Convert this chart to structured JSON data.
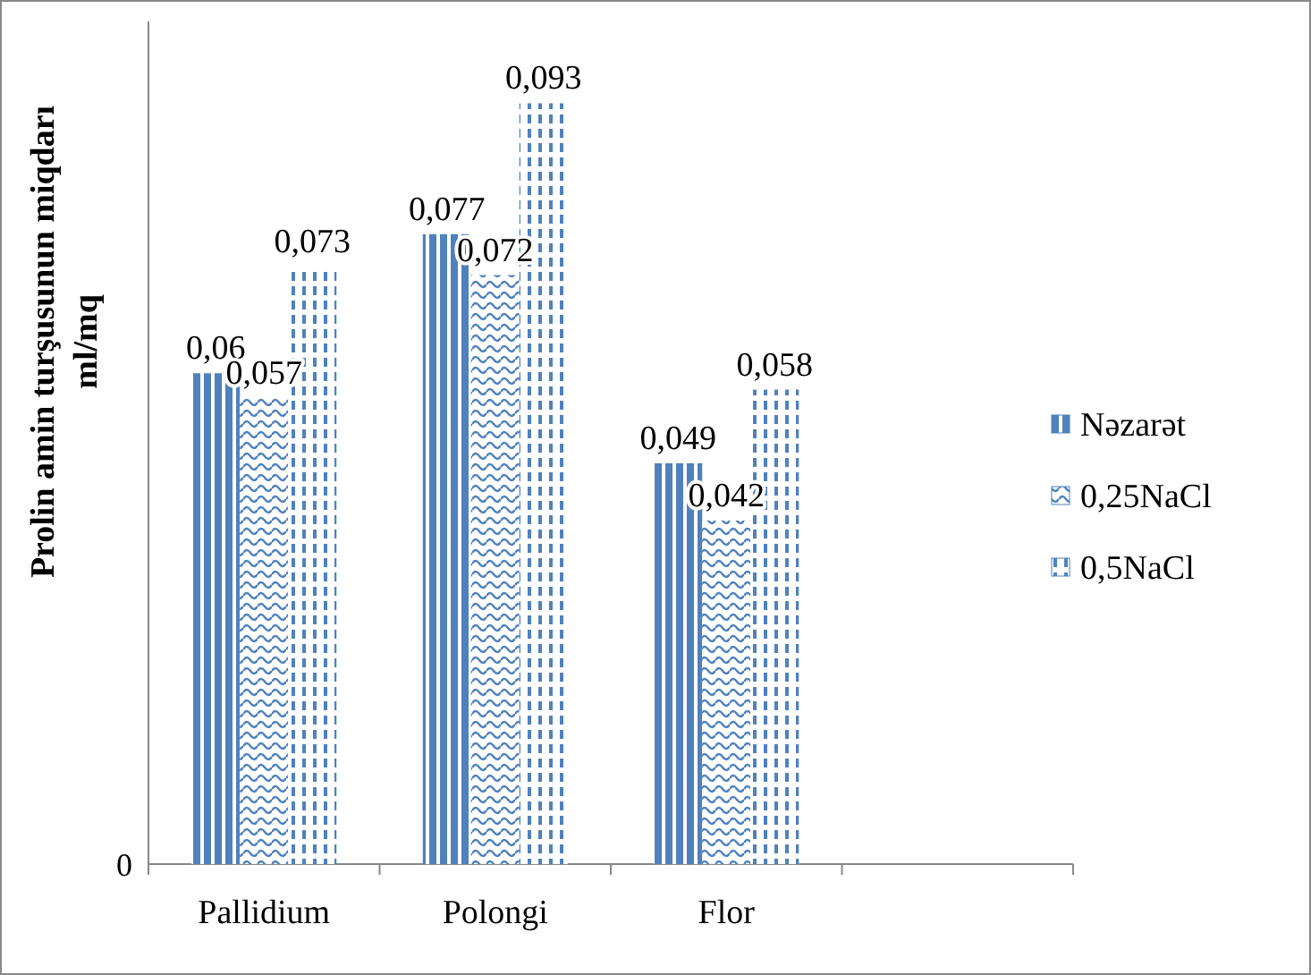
{
  "chart_data": {
    "type": "bar",
    "ylabel": "Prolin amin turşusunun miqdarı ml/mq",
    "categories": [
      "Pallidium",
      "Polongi",
      "Flor",
      null
    ],
    "series": [
      {
        "name": "Nəzarət",
        "color": "#4f81bd",
        "values": [
          0.06,
          0.077,
          0.049,
          null
        ],
        "value_labels": [
          "0,06",
          "0,077",
          "0,049",
          null
        ]
      },
      {
        "name": "0,25NaCl",
        "color": "#4f81bd",
        "values": [
          0.057,
          0.072,
          0.042,
          null
        ],
        "value_labels": [
          "0,057",
          "0,072",
          "0,042",
          null
        ]
      },
      {
        "name": "0,5NaCl",
        "color": "#4f81bd",
        "values": [
          0.073,
          0.093,
          0.058,
          null
        ],
        "value_labels": [
          "0,073",
          "0,093",
          "0,058",
          null
        ]
      }
    ],
    "ylim": [
      0,
      0.103
    ],
    "annotations": [
      "0"
    ],
    "legend": "right"
  }
}
